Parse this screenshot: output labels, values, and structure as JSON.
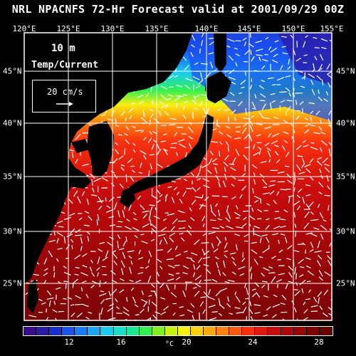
{
  "title": "NRL NPACNFS 72-Hr Forecast valid at 2001/09/29 00Z",
  "lon_labels": [
    "120°E",
    "125°E",
    "130°E",
    "135°E",
    "140°E",
    "145°E",
    "150°E",
    "155°E"
  ],
  "lat_labels": [
    "45°N",
    "40°N",
    "35°N",
    "30°N",
    "25°N"
  ],
  "legend": {
    "depth": "10  m",
    "label": "Temp/Current",
    "ref_vector": "20 cm/s"
  },
  "colorbar": {
    "unit": "°C",
    "tick_labels": [
      "12",
      "16",
      "20",
      "24",
      "28"
    ],
    "colors": [
      "#3a0b8a",
      "#2a1aa8",
      "#1a2ed0",
      "#1a52f0",
      "#1a7cff",
      "#1aa6ff",
      "#18ccf0",
      "#18e0c8",
      "#18e890",
      "#30f050",
      "#80f020",
      "#c8f010",
      "#f8f010",
      "#ffd010",
      "#ffa810",
      "#ff8010",
      "#ff5810",
      "#f83010",
      "#e01810",
      "#c80c0c",
      "#b0080a",
      "#980608",
      "#800406",
      "#6a0204"
    ]
  },
  "map": {
    "lon_range": [
      120,
      155
    ],
    "lat_range": [
      21,
      49
    ],
    "land_color": "#000000",
    "vector_color": "#ffffff"
  }
}
